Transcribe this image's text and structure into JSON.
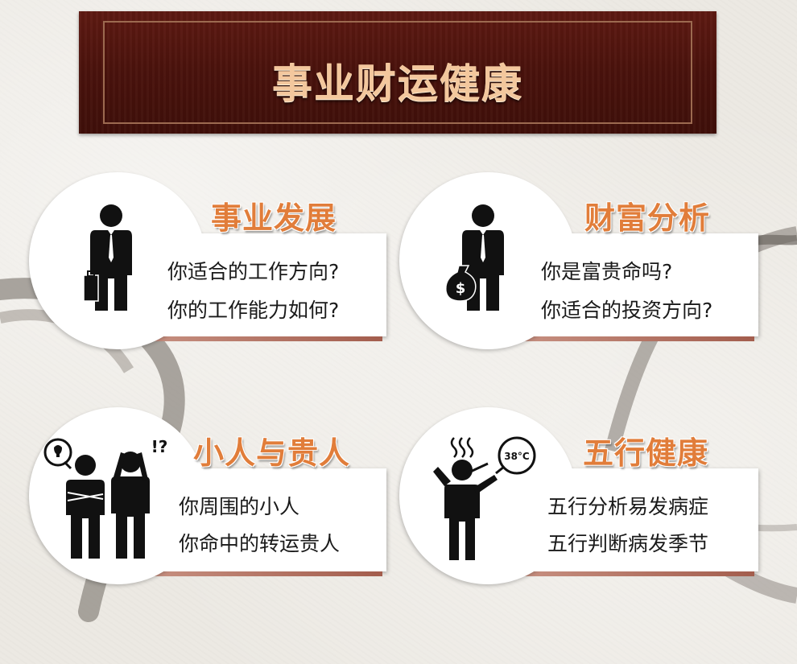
{
  "header": {
    "title": "事业财运健康"
  },
  "cards": [
    {
      "title": "事业发展",
      "lines": [
        "你适合的工作方向?",
        "你的工作能力如何?"
      ],
      "icon": "businessman-briefcase-icon"
    },
    {
      "title": "财富分析",
      "lines": [
        "你是富贵命吗?",
        "你适合的投资方向?"
      ],
      "icon": "businessman-money-bag-icon",
      "icon_text": "$"
    },
    {
      "title": "小人与贵人",
      "lines": [
        "你周围的小人",
        "你命中的转运贵人"
      ],
      "icon": "two-people-idea-confusion-icon",
      "icon_text": "!?"
    },
    {
      "title": "五行健康",
      "lines": [
        "五行分析易发病症",
        "五行判断病发季节"
      ],
      "icon": "sick-person-thermometer-icon",
      "icon_text": "38°C"
    }
  ],
  "colors": {
    "banner": "#4a120c",
    "banner_text": "#f3c79d",
    "title_orange": "#e17d3a",
    "strip": "#b06a5a"
  }
}
